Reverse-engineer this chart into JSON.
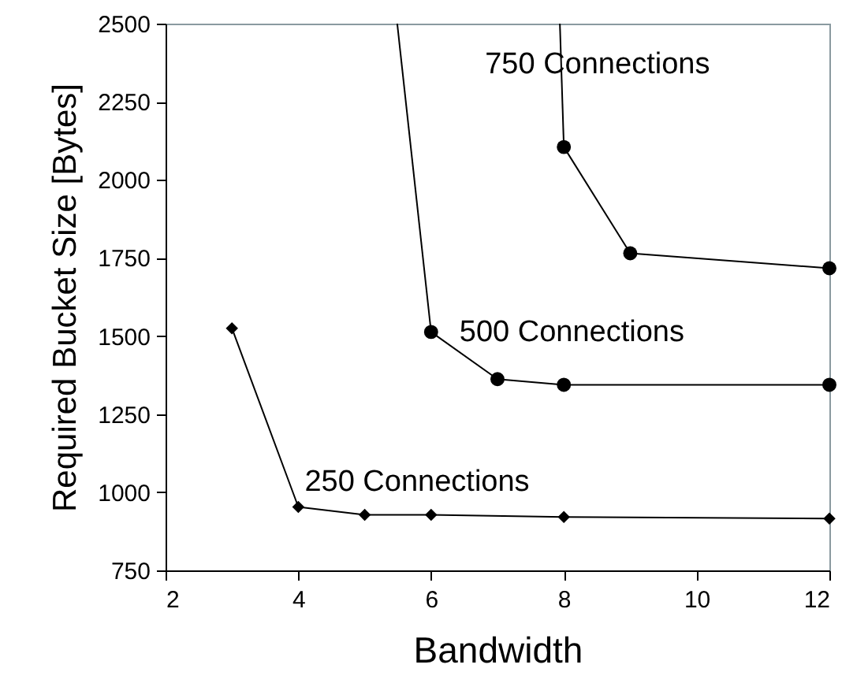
{
  "chart_data": {
    "type": "line",
    "xlabel": "Bandwidth",
    "ylabel": "Required Bucket Size [Bytes]",
    "xlim": [
      2,
      12
    ],
    "xticks": [
      2,
      4,
      6,
      8,
      10,
      12
    ],
    "ylim": [
      750,
      2500
    ],
    "yticks": [
      750,
      1000,
      1250,
      1500,
      1750,
      2000,
      2250,
      2500
    ],
    "grid": false,
    "series": [
      {
        "name": "250 Connections",
        "color": "#000000",
        "marker": "diamond",
        "x": [
          3,
          4,
          5,
          6,
          8,
          12
        ],
        "values": [
          1525,
          953,
          928,
          928,
          921,
          916
        ]
      },
      {
        "name": "500 Connections",
        "color": "#000000",
        "marker": "circle",
        "x": [
          6,
          7,
          8,
          12
        ],
        "values": [
          1513,
          1362,
          1344,
          1344
        ]
      },
      {
        "name": "750 Connections",
        "color": "#000000",
        "marker": "circle",
        "x": [
          8,
          9,
          12
        ],
        "values": [
          2105,
          1765,
          1717
        ]
      },
      {
        "color": "#000000",
        "marker": "none",
        "x": [
          5.49,
          6
        ],
        "values": [
          2500,
          1513
        ]
      },
      {
        "color": "#000000",
        "marker": "none",
        "x": [
          7.94,
          8
        ],
        "values": [
          2500,
          2105
        ]
      }
    ]
  }
}
